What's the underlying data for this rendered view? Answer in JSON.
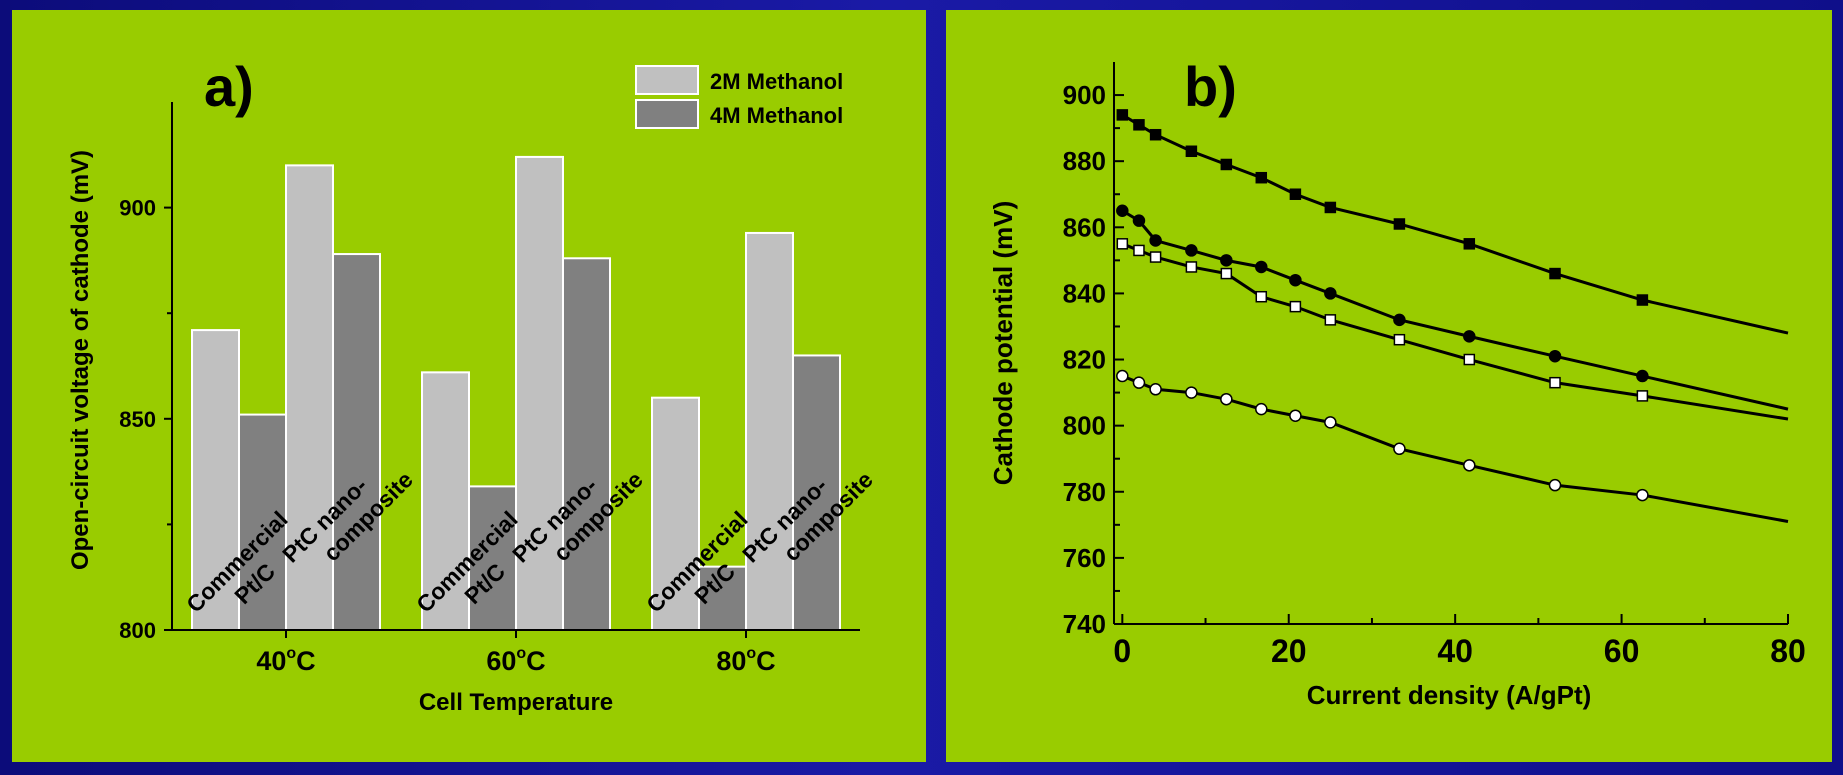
{
  "colors": {
    "panel_background": "#99cc00",
    "slide_background": "#12129a",
    "bar_2m": "#c0c0c0",
    "bar_4m": "#808080"
  },
  "chart_data": [
    {
      "type": "bar",
      "title": "a)",
      "xlabel": "Cell Temperature",
      "ylabel": "Open-circuit voltage of cathode (mV)",
      "ylim": [
        800,
        925
      ],
      "yticks": [
        "800",
        "850",
        "900"
      ],
      "legend_position": "top-right",
      "categories": [
        {
          "main": "40",
          "sup": "o",
          "unit": "C"
        },
        {
          "main": "60",
          "sup": "o",
          "unit": "C"
        },
        {
          "main": "80",
          "sup": "o",
          "unit": "C"
        }
      ],
      "catalyst_labels": [
        {
          "line1": "Commercial",
          "line2": "Pt/C"
        },
        {
          "line1": "PtC nano-",
          "line2": "composite"
        }
      ],
      "series": [
        {
          "name": "2M Methanol",
          "catalyst": "commercial",
          "values": [
            871,
            861,
            855
          ]
        },
        {
          "name": "4M Methanol",
          "catalyst": "commercial",
          "values": [
            851,
            834,
            815
          ]
        },
        {
          "name": "2M Methanol",
          "catalyst": "nanocomposite",
          "values": [
            910,
            912,
            894
          ]
        },
        {
          "name": "4M Methanol",
          "catalyst": "nanocomposite",
          "values": [
            889,
            888,
            865
          ]
        }
      ],
      "legend": [
        "2M Methanol",
        "4M Methanol"
      ]
    },
    {
      "type": "line",
      "title": "b)",
      "xlabel": "Current density (A/gPt)",
      "ylabel": "Cathode potential (mV)",
      "xlim": [
        -1,
        80
      ],
      "ylim": [
        740,
        910
      ],
      "xticks": [
        "0",
        "20",
        "40",
        "60",
        "80"
      ],
      "yticks": [
        "740",
        "760",
        "780",
        "800",
        "820",
        "840",
        "860",
        "880",
        "900"
      ],
      "grid": false,
      "series": [
        {
          "marker": "filled-square",
          "x": [
            0,
            2,
            4,
            8.3,
            12.5,
            16.7,
            20.8,
            25,
            33.3,
            41.7,
            52,
            62.5
          ],
          "y": [
            894,
            891,
            888,
            883,
            879,
            875,
            870,
            866,
            861,
            855,
            846,
            838
          ],
          "tail": [
            80,
            828
          ]
        },
        {
          "marker": "filled-circle",
          "x": [
            0,
            2,
            4,
            8.3,
            12.5,
            16.7,
            20.8,
            25,
            33.3,
            41.7,
            52,
            62.5
          ],
          "y": [
            865,
            862,
            856,
            853,
            850,
            848,
            844,
            840,
            832,
            827,
            821,
            815
          ],
          "tail": [
            80,
            805
          ]
        },
        {
          "marker": "open-square",
          "x": [
            0,
            2,
            4,
            8.3,
            12.5,
            16.7,
            20.8,
            25,
            33.3,
            41.7,
            52,
            62.5
          ],
          "y": [
            855,
            853,
            851,
            848,
            846,
            839,
            836,
            832,
            826,
            820,
            813,
            809
          ],
          "tail": [
            80,
            802
          ]
        },
        {
          "marker": "open-circle",
          "x": [
            0,
            2,
            4,
            8.3,
            12.5,
            16.7,
            20.8,
            25,
            33.3,
            41.7,
            52,
            62.5
          ],
          "y": [
            815,
            813,
            811,
            810,
            808,
            805,
            803,
            801,
            793,
            788,
            782,
            779
          ],
          "tail": [
            80,
            771
          ]
        }
      ]
    }
  ]
}
